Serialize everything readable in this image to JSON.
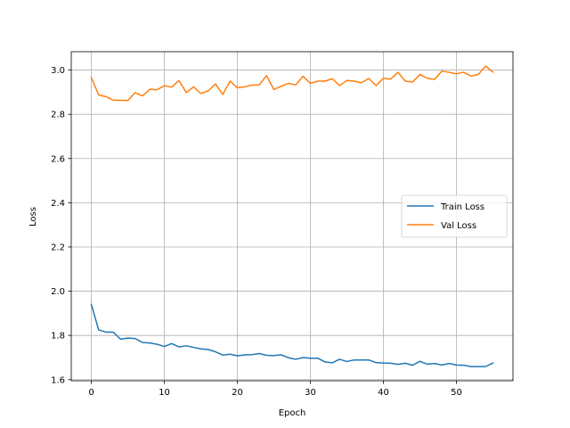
{
  "chart_data": {
    "type": "line",
    "xlabel": "Epoch",
    "ylabel": "Loss",
    "xlim": [
      -2.75,
      57.75
    ],
    "ylim": [
      1.595,
      3.083
    ],
    "xticks": [
      0,
      10,
      20,
      30,
      40,
      50
    ],
    "yticks": [
      1.6,
      1.8,
      2.0,
      2.2,
      2.4,
      2.6,
      2.8,
      3.0
    ],
    "xtick_labels": [
      "0",
      "10",
      "20",
      "30",
      "40",
      "50"
    ],
    "ytick_labels": [
      "1.6",
      "1.8",
      "2.0",
      "2.2",
      "2.4",
      "2.6",
      "2.8",
      "3.0"
    ],
    "grid": true,
    "legend_position": "center-right",
    "series": [
      {
        "name": "Train Loss",
        "color": "#1f77b4",
        "x": [
          0,
          1,
          2,
          3,
          4,
          5,
          6,
          7,
          8,
          9,
          10,
          11,
          12,
          13,
          14,
          15,
          16,
          17,
          18,
          19,
          20,
          21,
          22,
          23,
          24,
          25,
          26,
          27,
          28,
          29,
          30,
          31,
          32,
          33,
          34,
          35,
          36,
          37,
          38,
          39,
          40,
          41,
          42,
          43,
          44,
          45,
          46,
          47,
          48,
          49,
          50,
          51,
          52,
          53,
          54,
          55
        ],
        "values": [
          1.94,
          1.825,
          1.815,
          1.815,
          1.783,
          1.788,
          1.786,
          1.768,
          1.766,
          1.76,
          1.75,
          1.763,
          1.748,
          1.753,
          1.746,
          1.739,
          1.736,
          1.726,
          1.711,
          1.715,
          1.708,
          1.712,
          1.713,
          1.718,
          1.71,
          1.709,
          1.712,
          1.699,
          1.692,
          1.7,
          1.697,
          1.697,
          1.68,
          1.676,
          1.692,
          1.682,
          1.689,
          1.689,
          1.689,
          1.677,
          1.675,
          1.674,
          1.669,
          1.674,
          1.665,
          1.683,
          1.67,
          1.673,
          1.666,
          1.673,
          1.666,
          1.665,
          1.659,
          1.659,
          1.659,
          1.675
        ]
      },
      {
        "name": "Val Loss",
        "color": "#ff7f0e",
        "x": [
          0,
          1,
          2,
          3,
          4,
          5,
          6,
          7,
          8,
          9,
          10,
          11,
          12,
          13,
          14,
          15,
          16,
          17,
          18,
          19,
          20,
          21,
          22,
          23,
          24,
          25,
          26,
          27,
          28,
          29,
          30,
          31,
          32,
          33,
          34,
          35,
          36,
          37,
          38,
          39,
          40,
          41,
          42,
          43,
          44,
          45,
          46,
          47,
          48,
          49,
          50,
          51,
          52,
          53,
          54,
          55
        ],
        "values": [
          2.966,
          2.888,
          2.88,
          2.864,
          2.863,
          2.862,
          2.898,
          2.883,
          2.913,
          2.911,
          2.929,
          2.923,
          2.953,
          2.898,
          2.924,
          2.894,
          2.906,
          2.937,
          2.89,
          2.95,
          2.92,
          2.924,
          2.932,
          2.933,
          2.975,
          2.912,
          2.927,
          2.94,
          2.933,
          2.972,
          2.94,
          2.95,
          2.95,
          2.961,
          2.93,
          2.953,
          2.95,
          2.943,
          2.962,
          2.93,
          2.963,
          2.959,
          2.99,
          2.95,
          2.946,
          2.98,
          2.963,
          2.958,
          2.995,
          2.99,
          2.983,
          2.99,
          2.973,
          2.98,
          3.018,
          2.991
        ]
      }
    ]
  }
}
